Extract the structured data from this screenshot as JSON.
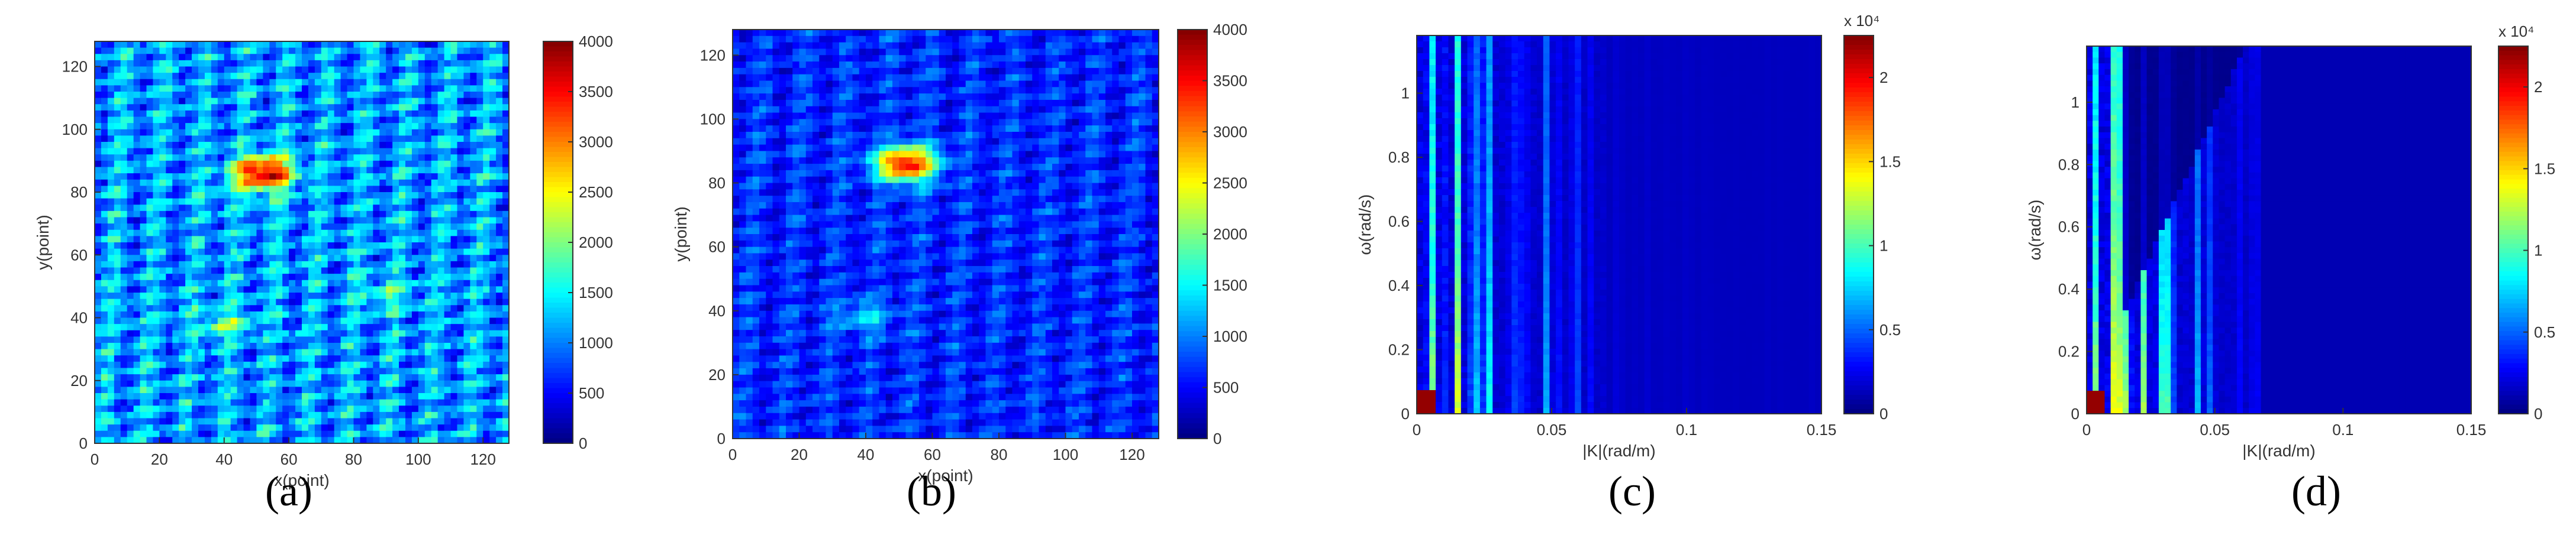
{
  "figure": {
    "captions": [
      "(a)",
      "(b)",
      "(c)",
      "(d)"
    ]
  },
  "chart_data": [
    {
      "type": "heatmap",
      "caption": "(a)",
      "xlabel": "x(point)",
      "ylabel": "y(point)",
      "xlim": [
        0,
        128
      ],
      "ylim": [
        0,
        128
      ],
      "x_ticks": [
        0,
        20,
        40,
        60,
        80,
        100,
        120
      ],
      "y_ticks": [
        0,
        20,
        40,
        60,
        80,
        100,
        120
      ],
      "colorbar": {
        "range": [
          0,
          4000
        ],
        "ticks": [
          0,
          500,
          1000,
          1500,
          2000,
          2500,
          3000,
          3500,
          4000
        ],
        "exponent_label": ""
      },
      "colormap": "jet",
      "background_level": 1100,
      "hotspots": [
        {
          "x": 52,
          "y": 86,
          "value": 3900
        },
        {
          "x": 40,
          "y": 38,
          "value": 1900
        },
        {
          "x": 90,
          "y": 48,
          "value": 1600
        }
      ]
    },
    {
      "type": "heatmap",
      "caption": "(b)",
      "xlabel": "x(point)",
      "ylabel": "y(point)",
      "xlim": [
        0,
        128
      ],
      "ylim": [
        0,
        128
      ],
      "x_ticks": [
        0,
        20,
        40,
        60,
        80,
        100,
        120
      ],
      "y_ticks": [
        0,
        20,
        40,
        60,
        80,
        100,
        120
      ],
      "colorbar": {
        "range": [
          0,
          4000
        ],
        "ticks": [
          0,
          500,
          1000,
          1500,
          2000,
          2500,
          3000,
          3500,
          4000
        ],
        "exponent_label": ""
      },
      "colormap": "jet",
      "background_level": 650,
      "hotspots": [
        {
          "x": 52,
          "y": 86,
          "value": 3600
        },
        {
          "x": 40,
          "y": 38,
          "value": 1300
        }
      ]
    },
    {
      "type": "heatmap",
      "caption": "(c)",
      "xlabel": "|K|(rad/m)",
      "ylabel": "ω(rad/s)",
      "xlim": [
        0,
        0.15
      ],
      "ylim": [
        0,
        1.18
      ],
      "x_ticks": [
        0,
        0.05,
        0.1,
        0.15
      ],
      "y_ticks": [
        0,
        0.2,
        0.4,
        0.6,
        0.8,
        1
      ],
      "colorbar": {
        "range": [
          0,
          2.25
        ],
        "ticks": [
          0,
          0.5,
          1,
          1.5,
          2
        ],
        "exponent_label": "x 10⁴"
      },
      "colormap": "jet",
      "structure": "vertical streaks concentrated at |K| < 0.07, peak near origin",
      "dispersion_notch": false
    },
    {
      "type": "heatmap",
      "caption": "(d)",
      "xlabel": "|K|(rad/m)",
      "ylabel": "ω(rad/s)",
      "xlim": [
        0,
        0.15
      ],
      "ylim": [
        0,
        1.18
      ],
      "x_ticks": [
        0,
        0.05,
        0.1,
        0.15
      ],
      "y_ticks": [
        0,
        0.2,
        0.4,
        0.6,
        0.8,
        1
      ],
      "colorbar": {
        "range": [
          0,
          2.25
        ],
        "ticks": [
          0,
          0.5,
          1,
          1.5,
          2
        ],
        "exponent_label": "x 10⁴"
      },
      "colormap": "jet",
      "structure": "vertical streaks with energy removed along dispersion band",
      "dispersion_notch": true
    }
  ]
}
